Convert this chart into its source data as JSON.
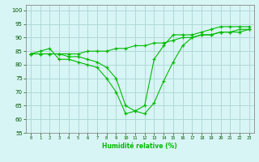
{
  "xlabel": "Humidité relative (%)",
  "background_color": "#d8f5f5",
  "grid_color": "#b0d8d8",
  "line_color": "#00bb00",
  "x_values": [
    0,
    1,
    2,
    3,
    4,
    5,
    6,
    7,
    8,
    9,
    10,
    11,
    12,
    13,
    14,
    15,
    16,
    17,
    18,
    19,
    20,
    21,
    22,
    23
  ],
  "line1": [
    84,
    85,
    86,
    82,
    82,
    81,
    80,
    79,
    75,
    70,
    62,
    63,
    65,
    82,
    87,
    91,
    91,
    91,
    92,
    93,
    94,
    94,
    94,
    94
  ],
  "line2": [
    84,
    84,
    84,
    84,
    84,
    84,
    85,
    85,
    85,
    86,
    86,
    87,
    87,
    88,
    88,
    89,
    90,
    90,
    91,
    91,
    92,
    92,
    92,
    93
  ],
  "line3": [
    84,
    84,
    84,
    84,
    83,
    83,
    82,
    81,
    79,
    75,
    65,
    63,
    62,
    66,
    74,
    81,
    87,
    90,
    91,
    91,
    92,
    92,
    93,
    93
  ],
  "ylim": [
    55,
    102
  ],
  "xlim": [
    -0.5,
    23.5
  ],
  "yticks": [
    55,
    60,
    65,
    70,
    75,
    80,
    85,
    90,
    95,
    100
  ],
  "xticks": [
    0,
    1,
    2,
    3,
    4,
    5,
    6,
    7,
    8,
    9,
    10,
    11,
    12,
    13,
    14,
    15,
    16,
    17,
    18,
    19,
    20,
    21,
    22,
    23
  ]
}
